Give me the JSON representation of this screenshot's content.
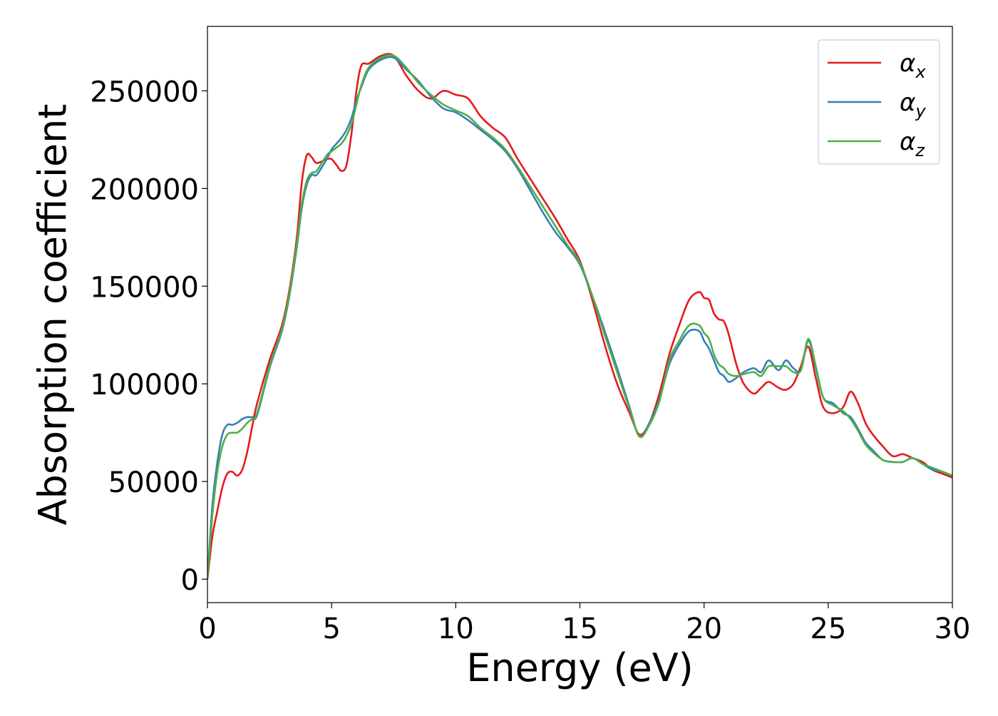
{
  "chart_data": {
    "type": "line",
    "title": "",
    "xlabel": "Energy (eV)",
    "ylabel": "Absorption coefficient",
    "xlim": [
      0,
      30
    ],
    "ylim": [
      -12000,
      283000
    ],
    "x_ticks": [
      0,
      5,
      10,
      15,
      20,
      25,
      30
    ],
    "x_tick_labels": [
      "0",
      "5",
      "10",
      "15",
      "20",
      "25",
      "30"
    ],
    "y_ticks": [
      0,
      50000,
      100000,
      150000,
      200000,
      250000
    ],
    "y_tick_labels": [
      "0",
      "50000",
      "100000",
      "150000",
      "200000",
      "250000"
    ],
    "grid": false,
    "legend_position": "top-right",
    "series": [
      {
        "name": "αx",
        "symbol": "α",
        "subscript": "x",
        "color": "#e41a1c",
        "x": [
          0,
          0.2,
          0.4,
          0.6,
          0.8,
          1.0,
          1.2,
          1.4,
          1.6,
          1.8,
          2.0,
          2.5,
          3.0,
          3.3,
          3.6,
          3.8,
          4.0,
          4.2,
          4.4,
          4.8,
          5.0,
          5.2,
          5.4,
          5.6,
          5.8,
          6.0,
          6.2,
          6.5,
          7.0,
          7.5,
          8.0,
          8.5,
          9.0,
          9.5,
          10.0,
          10.5,
          11.0,
          11.5,
          12.0,
          12.5,
          13.0,
          13.5,
          14.0,
          14.5,
          15.0,
          15.5,
          16.0,
          16.5,
          17.0,
          17.4,
          17.8,
          18.2,
          18.6,
          19.0,
          19.4,
          19.8,
          20.0,
          20.2,
          20.4,
          20.6,
          20.8,
          21.0,
          21.3,
          21.6,
          22.0,
          22.3,
          22.6,
          23.0,
          23.3,
          23.6,
          23.9,
          24.2,
          24.5,
          24.8,
          25.2,
          25.6,
          25.9,
          26.2,
          26.5,
          26.8,
          27.2,
          27.6,
          28.0,
          28.4,
          28.8,
          29.2,
          29.6,
          30.0
        ],
        "values": [
          0,
          22000,
          35000,
          47000,
          54000,
          55000,
          53000,
          56000,
          65000,
          78000,
          90000,
          112000,
          130000,
          148000,
          175000,
          203000,
          217000,
          216000,
          213000,
          215000,
          215000,
          212000,
          209000,
          212000,
          228000,
          250000,
          263000,
          264000,
          268000,
          268000,
          258000,
          250000,
          246000,
          250000,
          248000,
          246000,
          237000,
          231000,
          226000,
          215000,
          205000,
          195000,
          185000,
          174000,
          163000,
          143000,
          120000,
          100000,
          85000,
          74000,
          80000,
          95000,
          115000,
          130000,
          143000,
          147000,
          144000,
          143000,
          136000,
          133000,
          132000,
          125000,
          110000,
          100000,
          95000,
          98000,
          101000,
          98000,
          97000,
          100000,
          109000,
          119000,
          103000,
          88000,
          85000,
          88000,
          96000,
          90000,
          80000,
          74000,
          68000,
          63000,
          64000,
          62000,
          60000,
          56000,
          54000,
          52000
        ]
      },
      {
        "name": "αy",
        "symbol": "α",
        "subscript": "y",
        "color": "#377eb8",
        "x": [
          0,
          0.2,
          0.4,
          0.6,
          0.8,
          1.0,
          1.2,
          1.4,
          1.6,
          1.8,
          2.0,
          2.5,
          3.0,
          3.3,
          3.6,
          3.8,
          4.0,
          4.2,
          4.4,
          4.8,
          5.0,
          5.2,
          5.4,
          5.6,
          5.8,
          6.0,
          6.2,
          6.5,
          7.0,
          7.5,
          8.0,
          8.5,
          9.0,
          9.5,
          10.0,
          10.5,
          11.0,
          11.5,
          12.0,
          12.5,
          13.0,
          13.5,
          14.0,
          14.5,
          15.0,
          15.5,
          16.0,
          16.5,
          17.0,
          17.4,
          17.8,
          18.2,
          18.6,
          19.0,
          19.4,
          19.8,
          20.0,
          20.2,
          20.4,
          20.6,
          20.8,
          21.0,
          21.3,
          21.6,
          22.0,
          22.3,
          22.6,
          23.0,
          23.3,
          23.6,
          23.9,
          24.2,
          24.5,
          24.8,
          25.2,
          25.6,
          25.9,
          26.2,
          26.5,
          26.8,
          27.2,
          27.6,
          28.0,
          28.4,
          28.8,
          29.2,
          29.6,
          30.0
        ],
        "values": [
          0,
          38000,
          60000,
          74000,
          79000,
          79000,
          80000,
          82000,
          83000,
          83000,
          84000,
          108000,
          127000,
          145000,
          170000,
          190000,
          202000,
          207000,
          207000,
          215000,
          220000,
          223000,
          226000,
          230000,
          236000,
          245000,
          252000,
          261000,
          266000,
          267000,
          261000,
          255000,
          247000,
          241000,
          239000,
          235000,
          230000,
          225000,
          219000,
          210000,
          199000,
          188000,
          178000,
          170000,
          161000,
          145000,
          127000,
          108000,
          88000,
          73000,
          80000,
          92000,
          110000,
          120000,
          127000,
          127000,
          122000,
          118000,
          112000,
          106000,
          104000,
          101000,
          103000,
          106000,
          108000,
          106000,
          112000,
          107000,
          112000,
          108000,
          107000,
          122000,
          108000,
          93000,
          90000,
          85000,
          83000,
          77000,
          70000,
          66000,
          61000,
          60000,
          60000,
          62000,
          59000,
          56000,
          55000,
          53000
        ]
      },
      {
        "name": "αz",
        "symbol": "α",
        "subscript": "z",
        "color": "#4daf4a",
        "x": [
          0,
          0.2,
          0.4,
          0.6,
          0.8,
          1.0,
          1.2,
          1.4,
          1.6,
          1.8,
          2.0,
          2.5,
          3.0,
          3.3,
          3.6,
          3.8,
          4.0,
          4.2,
          4.4,
          4.8,
          5.0,
          5.2,
          5.4,
          5.6,
          5.8,
          6.0,
          6.2,
          6.5,
          7.0,
          7.5,
          8.0,
          8.5,
          9.0,
          9.5,
          10.0,
          10.5,
          11.0,
          11.5,
          12.0,
          12.5,
          13.0,
          13.5,
          14.0,
          14.5,
          15.0,
          15.5,
          16.0,
          16.5,
          17.0,
          17.4,
          17.8,
          18.2,
          18.6,
          19.0,
          19.4,
          19.8,
          20.0,
          20.2,
          20.4,
          20.6,
          20.8,
          21.0,
          21.3,
          21.6,
          22.0,
          22.3,
          22.6,
          23.0,
          23.3,
          23.6,
          23.9,
          24.2,
          24.5,
          24.8,
          25.2,
          25.6,
          25.9,
          26.2,
          26.5,
          26.8,
          27.2,
          27.6,
          28.0,
          28.4,
          28.8,
          29.2,
          29.6,
          30.0
        ],
        "values": [
          0,
          33000,
          55000,
          68000,
          74000,
          75000,
          75000,
          77000,
          80000,
          82000,
          85000,
          109000,
          128000,
          146000,
          172000,
          192000,
          204000,
          208000,
          209000,
          217000,
          219000,
          221000,
          223000,
          227000,
          233000,
          243000,
          253000,
          262000,
          267000,
          268000,
          262000,
          254000,
          248000,
          243000,
          240000,
          237000,
          231000,
          226000,
          220000,
          211000,
          201000,
          191000,
          181000,
          171000,
          162000,
          145000,
          125000,
          106000,
          87000,
          73000,
          79000,
          91000,
          112000,
          122000,
          130000,
          130000,
          126000,
          123000,
          115000,
          110000,
          108000,
          105000,
          104000,
          105000,
          106000,
          104000,
          109000,
          109000,
          109000,
          106000,
          107000,
          123000,
          109000,
          93000,
          89000,
          86000,
          82000,
          76000,
          69000,
          65000,
          61000,
          60000,
          60000,
          62000,
          59000,
          57000,
          55000,
          53000
        ]
      }
    ]
  }
}
